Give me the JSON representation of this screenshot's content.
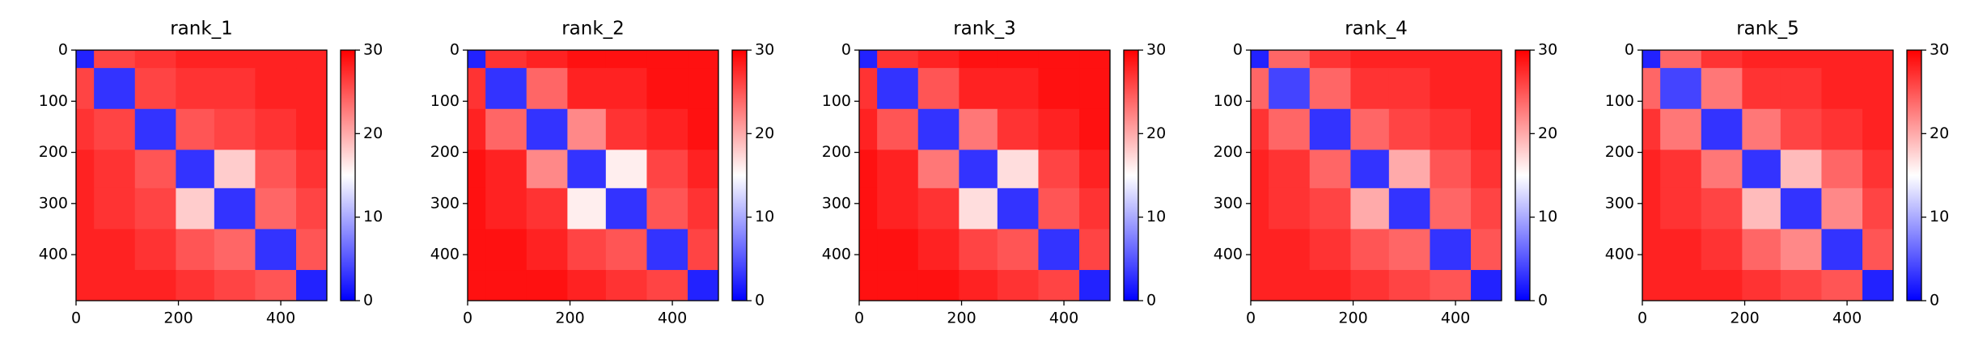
{
  "chart_data": [
    {
      "type": "heatmap",
      "title": "rank_1",
      "colormap": "bwr",
      "bins": [
        0,
        35,
        115,
        195,
        270,
        350,
        430,
        490
      ],
      "z": [
        [
          2,
          26,
          27,
          28,
          28,
          28,
          28
        ],
        [
          26,
          3,
          26,
          27,
          27,
          28,
          28
        ],
        [
          27,
          26,
          3,
          25,
          26,
          27,
          28
        ],
        [
          28,
          27,
          25,
          3,
          18,
          25,
          27
        ],
        [
          28,
          27,
          26,
          18,
          3,
          24,
          26
        ],
        [
          28,
          28,
          27,
          25,
          24,
          3,
          25
        ],
        [
          28,
          28,
          28,
          27,
          26,
          25,
          2
        ]
      ],
      "zlim": [
        0,
        30
      ],
      "zticks": [
        0,
        10,
        20,
        30
      ],
      "xlim": [
        0,
        490
      ],
      "ylim": [
        490,
        0
      ],
      "xticks": [
        0,
        200,
        400
      ],
      "yticks": [
        0,
        100,
        200,
        300,
        400
      ]
    },
    {
      "type": "heatmap",
      "title": "rank_2",
      "colormap": "bwr",
      "bins": [
        0,
        35,
        115,
        195,
        270,
        350,
        430,
        490
      ],
      "z": [
        [
          2,
          27,
          28,
          29,
          29,
          29,
          29
        ],
        [
          27,
          3,
          24,
          28,
          28,
          29,
          29
        ],
        [
          28,
          24,
          3,
          22,
          27,
          28,
          29
        ],
        [
          29,
          28,
          22,
          3,
          16,
          26,
          28
        ],
        [
          29,
          28,
          27,
          16,
          3,
          25,
          27
        ],
        [
          29,
          29,
          28,
          26,
          25,
          3,
          26
        ],
        [
          29,
          29,
          29,
          28,
          27,
          26,
          2
        ]
      ],
      "zlim": [
        0,
        30
      ],
      "zticks": [
        0,
        10,
        20,
        30
      ],
      "xlim": [
        0,
        490
      ],
      "ylim": [
        490,
        0
      ],
      "xticks": [
        0,
        200,
        400
      ],
      "yticks": [
        0,
        100,
        200,
        300,
        400
      ]
    },
    {
      "type": "heatmap",
      "title": "rank_3",
      "colormap": "bwr",
      "bins": [
        0,
        35,
        115,
        195,
        270,
        350,
        430,
        490
      ],
      "z": [
        [
          2,
          27,
          28,
          29,
          29,
          29,
          29
        ],
        [
          27,
          3,
          25,
          28,
          28,
          29,
          29
        ],
        [
          28,
          25,
          3,
          23,
          27,
          28,
          29
        ],
        [
          29,
          28,
          23,
          3,
          17,
          26,
          28
        ],
        [
          29,
          28,
          27,
          17,
          3,
          25,
          27
        ],
        [
          29,
          29,
          28,
          26,
          25,
          3,
          26
        ],
        [
          29,
          29,
          29,
          28,
          27,
          26,
          2
        ]
      ],
      "zlim": [
        0,
        30
      ],
      "zticks": [
        0,
        10,
        20,
        30
      ],
      "xlim": [
        0,
        490
      ],
      "ylim": [
        490,
        0
      ],
      "xticks": [
        0,
        200,
        400
      ],
      "yticks": [
        0,
        100,
        200,
        300,
        400
      ]
    },
    {
      "type": "heatmap",
      "title": "rank_4",
      "colormap": "bwr",
      "bins": [
        0,
        35,
        115,
        195,
        270,
        350,
        430,
        490
      ],
      "z": [
        [
          2,
          24,
          27,
          28,
          28,
          28,
          28
        ],
        [
          24,
          4,
          24,
          27,
          27,
          28,
          28
        ],
        [
          27,
          24,
          3,
          24,
          26,
          27,
          28
        ],
        [
          28,
          27,
          24,
          3,
          20,
          25,
          27
        ],
        [
          28,
          27,
          26,
          20,
          3,
          24,
          26
        ],
        [
          28,
          28,
          27,
          25,
          24,
          3,
          25
        ],
        [
          28,
          28,
          28,
          27,
          26,
          25,
          2
        ]
      ],
      "zlim": [
        0,
        30
      ],
      "zticks": [
        0,
        10,
        20,
        30
      ],
      "xlim": [
        0,
        490
      ],
      "ylim": [
        490,
        0
      ],
      "xticks": [
        0,
        200,
        400
      ],
      "yticks": [
        0,
        100,
        200,
        300,
        400
      ]
    },
    {
      "type": "heatmap",
      "title": "rank_5",
      "colormap": "bwr",
      "bins": [
        0,
        35,
        115,
        195,
        270,
        350,
        430,
        490
      ],
      "z": [
        [
          2,
          24,
          27,
          28,
          28,
          28,
          28
        ],
        [
          24,
          4,
          23,
          27,
          27,
          28,
          28
        ],
        [
          27,
          23,
          3,
          23,
          26,
          27,
          28
        ],
        [
          28,
          27,
          23,
          3,
          19,
          24,
          27
        ],
        [
          28,
          27,
          26,
          19,
          3,
          22,
          26
        ],
        [
          28,
          28,
          27,
          24,
          22,
          3,
          25
        ],
        [
          28,
          28,
          28,
          27,
          26,
          25,
          2
        ]
      ],
      "zlim": [
        0,
        30
      ],
      "zticks": [
        0,
        10,
        20,
        30
      ],
      "xlim": [
        0,
        490
      ],
      "ylim": [
        490,
        0
      ],
      "xticks": [
        0,
        200,
        400
      ],
      "yticks": [
        0,
        100,
        200,
        300,
        400
      ]
    }
  ]
}
